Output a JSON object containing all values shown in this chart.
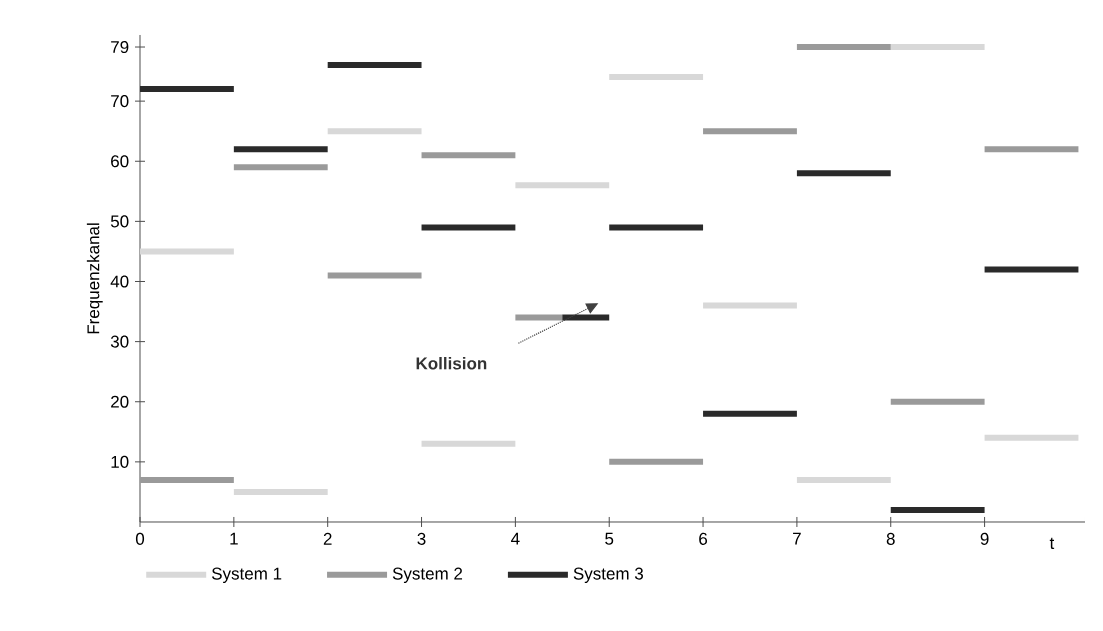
{
  "chart_data": {
    "type": "line",
    "xlabel": "t",
    "ylabel": "Frequenzkanal",
    "xlim": [
      0,
      10.07
    ],
    "ylim": [
      0,
      81
    ],
    "xticks": [
      0,
      1,
      2,
      3,
      4,
      5,
      6,
      7,
      8,
      9
    ],
    "yticks": [
      10,
      20,
      30,
      40,
      50,
      60,
      70,
      79
    ],
    "grid": false,
    "legend": "bottom",
    "marker": "none",
    "line_style": "solid",
    "annotations": [
      "Kollision"
    ],
    "series": [
      {
        "name": "System 1",
        "color": "#d8d8d8",
        "x": [
          0,
          1,
          null,
          1,
          2,
          null,
          2,
          3,
          null,
          3,
          4,
          null,
          4,
          5,
          null,
          5,
          6,
          null,
          6,
          7,
          null,
          7,
          8,
          null,
          8,
          9,
          null,
          9,
          10
        ],
        "values": [
          45,
          45,
          null,
          5,
          5,
          null,
          65,
          65,
          null,
          13,
          13,
          null,
          56,
          56,
          null,
          74,
          74,
          null,
          36,
          36,
          null,
          7,
          7,
          null,
          79,
          79,
          null,
          14,
          14
        ]
      },
      {
        "name": "System 2",
        "color": "#9a9a9a",
        "x": [
          0,
          1,
          null,
          1,
          2,
          null,
          2,
          3,
          null,
          3,
          4,
          null,
          4,
          4.5,
          null,
          5,
          6,
          null,
          6,
          7,
          null,
          7,
          8,
          null,
          8,
          9,
          null,
          9,
          10
        ],
        "values": [
          7,
          7,
          null,
          59,
          59,
          null,
          41,
          41,
          null,
          61,
          61,
          null,
          34,
          34,
          null,
          10,
          10,
          null,
          65,
          65,
          null,
          79,
          79,
          null,
          20,
          20,
          null,
          62,
          62
        ]
      },
      {
        "name": "System 3",
        "color": "#2a2a2a",
        "x": [
          0,
          1,
          null,
          1,
          2,
          null,
          2,
          3,
          null,
          3,
          4,
          null,
          4.5,
          5,
          null,
          5,
          6,
          null,
          6,
          7,
          null,
          7,
          8,
          null,
          8,
          9,
          null,
          9,
          10
        ],
        "values": [
          72,
          72,
          null,
          62,
          62,
          null,
          76,
          76,
          null,
          49,
          49,
          null,
          34,
          34,
          null,
          49,
          49,
          null,
          18,
          18,
          null,
          58,
          58,
          null,
          2,
          2,
          null,
          42,
          42
        ]
      }
    ]
  }
}
